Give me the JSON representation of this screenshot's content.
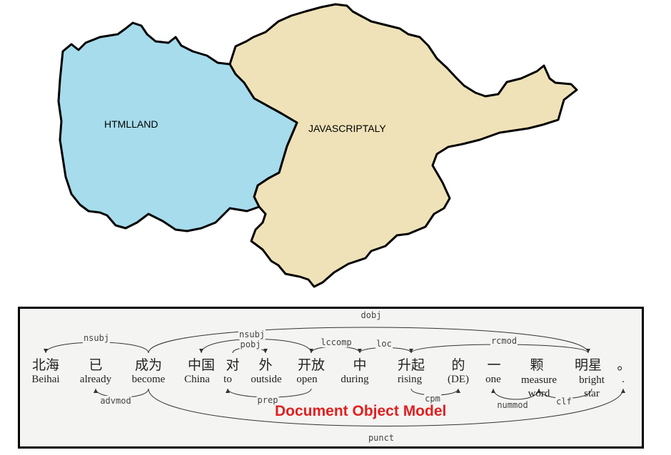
{
  "colors": {
    "htmlland": "#a6dcec",
    "javascriptaly": "#efe2b8",
    "caption": "#e02020",
    "border": "#000000"
  },
  "map": {
    "regions": [
      {
        "name": "HTMLLAND"
      },
      {
        "name": "JAVASCRIPTALY"
      }
    ]
  },
  "dependency_parse": {
    "caption": "Document Object Model",
    "hanzi": [
      "北海",
      "已",
      "成为",
      "中国",
      "对",
      "外",
      "开放",
      "中",
      "升起",
      "的",
      "一",
      "颗",
      "明星",
      "。"
    ],
    "gloss": [
      "Beihai",
      "already",
      "become",
      "China",
      "to",
      "outside",
      "open",
      "during",
      "rising",
      "(DE)",
      "one",
      "measure word",
      "bright star",
      "."
    ],
    "relations": [
      "dobj",
      "nsubj",
      "nsubj",
      "pobj",
      "lccomp",
      "loc",
      "rcmod",
      "advmod",
      "prep",
      "cpm",
      "nummod",
      "clf",
      "punct"
    ]
  }
}
